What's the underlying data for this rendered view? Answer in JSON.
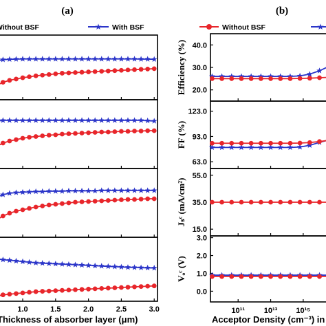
{
  "colors": {
    "without_bsf": "#e8262b",
    "with_bsf": "#2b35c9",
    "axis": "#000000"
  },
  "panel_a": {
    "tag": "(a)",
    "legend": {
      "without": "Without  BSF",
      "with": "With  BSF"
    },
    "xlabel": "Thickness of absorber layer (μm)",
    "xticks": [
      "1.0",
      "1.5",
      "2.0",
      "2.5",
      "3.0"
    ]
  },
  "panel_b": {
    "tag": "(b)",
    "legend": {
      "without": "Without  BSF"
    },
    "xlabel": "Acceptor Density (cm⁻³) in",
    "xticks": [
      "10¹¹",
      "10¹³",
      "10¹⁵"
    ],
    "ylabels": [
      "Efficiency (%)",
      "FF (%)",
      "Jₛᶜ (mA/cm²)",
      "Vₒᶜ (V)"
    ],
    "yticks": [
      [
        "40.0",
        "30.0",
        "20.0"
      ],
      [
        "123.0",
        "93.0",
        "63.0"
      ],
      [
        "55.0",
        "35.0",
        "15.0"
      ],
      [
        "3.0",
        "2.0",
        "1.0",
        "0.0"
      ]
    ]
  },
  "chart_data": [
    {
      "type": "line",
      "panel": "a",
      "x": [
        0.6,
        0.7,
        0.8,
        0.9,
        1.0,
        1.1,
        1.2,
        1.3,
        1.4,
        1.5,
        1.6,
        1.7,
        1.8,
        1.9,
        2.0,
        2.1,
        2.2,
        2.3,
        2.4,
        2.5,
        2.6,
        2.7,
        2.8,
        2.9,
        3.0
      ],
      "xlim": [
        0.55,
        3.05
      ],
      "subplots": [
        {
          "ylim": [
            0,
            1
          ],
          "series": [
            {
              "name": "With  BSF",
              "values": [
                0.6,
                0.62,
                0.625,
                0.628,
                0.63,
                0.63,
                0.63,
                0.63,
                0.63,
                0.63,
                0.63,
                0.63,
                0.63,
                0.63,
                0.63,
                0.63,
                0.63,
                0.63,
                0.63,
                0.63,
                0.63,
                0.63,
                0.628,
                0.628,
                0.625
              ]
            },
            {
              "name": "Without  BSF",
              "values": [
                0.22,
                0.27,
                0.3,
                0.32,
                0.34,
                0.355,
                0.37,
                0.38,
                0.39,
                0.4,
                0.41,
                0.415,
                0.42,
                0.425,
                0.43,
                0.435,
                0.44,
                0.445,
                0.45,
                0.455,
                0.46,
                0.465,
                0.47,
                0.475,
                0.48
              ]
            }
          ]
        },
        {
          "ylim": [
            0,
            1
          ],
          "series": [
            {
              "name": "With  BSF",
              "values": [
                0.69,
                0.7,
                0.7,
                0.7,
                0.7,
                0.7,
                0.7,
                0.7,
                0.7,
                0.7,
                0.7,
                0.7,
                0.7,
                0.7,
                0.7,
                0.7,
                0.7,
                0.7,
                0.7,
                0.7,
                0.7,
                0.7,
                0.7,
                0.695,
                0.69
              ]
            },
            {
              "name": "Without  BSF",
              "values": [
                0.32,
                0.37,
                0.4,
                0.42,
                0.44,
                0.455,
                0.465,
                0.475,
                0.485,
                0.49,
                0.5,
                0.505,
                0.51,
                0.515,
                0.52,
                0.525,
                0.53,
                0.53,
                0.535,
                0.54,
                0.54,
                0.545,
                0.545,
                0.55,
                0.55
              ]
            }
          ]
        },
        {
          "ylim": [
            0,
            1
          ],
          "series": [
            {
              "name": "With  BSF",
              "values": [
                0.58,
                0.62,
                0.64,
                0.65,
                0.655,
                0.66,
                0.665,
                0.665,
                0.67,
                0.67,
                0.67,
                0.675,
                0.675,
                0.675,
                0.675,
                0.675,
                0.68,
                0.68,
                0.68,
                0.68,
                0.68,
                0.68,
                0.68,
                0.68,
                0.68
              ]
            },
            {
              "name": "Without  BSF",
              "values": [
                0.25,
                0.31,
                0.35,
                0.38,
                0.4,
                0.42,
                0.44,
                0.455,
                0.47,
                0.48,
                0.49,
                0.5,
                0.51,
                0.515,
                0.52,
                0.525,
                0.53,
                0.535,
                0.54,
                0.545,
                0.55,
                0.55,
                0.555,
                0.56,
                0.56
              ]
            }
          ]
        },
        {
          "ylim": [
            0,
            1
          ],
          "series": [
            {
              "name": "With  BSF",
              "values": [
                0.66,
                0.65,
                0.64,
                0.63,
                0.62,
                0.61,
                0.6,
                0.595,
                0.59,
                0.585,
                0.58,
                0.575,
                0.57,
                0.565,
                0.56,
                0.555,
                0.55,
                0.545,
                0.54,
                0.535,
                0.53,
                0.528,
                0.525,
                0.522,
                0.52
              ]
            },
            {
              "name": "Without  BSF",
              "values": [
                0.08,
                0.1,
                0.11,
                0.12,
                0.13,
                0.14,
                0.15,
                0.155,
                0.16,
                0.165,
                0.17,
                0.175,
                0.18,
                0.185,
                0.19,
                0.195,
                0.2,
                0.205,
                0.21,
                0.215,
                0.22,
                0.225,
                0.23,
                0.235,
                0.24
              ]
            }
          ]
        }
      ]
    },
    {
      "type": "line",
      "panel": "b",
      "xscale": "log",
      "x_exponent": [
        9.4,
        10.0,
        10.6,
        11.2,
        11.8,
        12.4,
        13.0,
        13.6,
        14.2,
        14.8,
        15.4,
        16.0,
        16.6
      ],
      "xlim_exponent": [
        9.3,
        16.4
      ],
      "subplots": [
        {
          "ylabel": "Efficiency (%)",
          "ylim": [
            15,
            45
          ],
          "series": [
            {
              "name": "Without  BSF",
              "values": [
                25.0,
                25.0,
                25.0,
                25.0,
                25.0,
                25.0,
                25.0,
                25.0,
                25.0,
                25.1,
                25.2,
                25.4,
                25.6
              ]
            },
            {
              "name": "With BSF",
              "values": [
                26.0,
                26.0,
                26.0,
                26.0,
                26.0,
                26.0,
                26.0,
                26.0,
                26.0,
                26.2,
                27.0,
                28.5,
                30.5
              ]
            }
          ]
        },
        {
          "ylabel": "FF (%)",
          "ylim": [
            55,
            135
          ],
          "series": [
            {
              "name": "Without  BSF",
              "values": [
                85.0,
                85.0,
                85.0,
                85.0,
                85.0,
                85.0,
                85.0,
                85.0,
                85.0,
                85.2,
                85.8,
                87.0,
                88.5
              ]
            },
            {
              "name": "With BSF",
              "values": [
                80.0,
                80.0,
                80.0,
                80.0,
                80.0,
                80.0,
                80.0,
                80.0,
                80.0,
                80.5,
                82.5,
                86.0,
                89.0
              ]
            }
          ]
        },
        {
          "ylabel": "Jsc (mA/cm2)",
          "ylim": [
            10,
            60
          ],
          "series": [
            {
              "name": "Without  BSF",
              "values": [
                35.0,
                35.0,
                35.0,
                35.0,
                35.0,
                35.0,
                35.0,
                35.0,
                35.0,
                35.0,
                35.0,
                35.0,
                35.0
              ]
            }
          ]
        },
        {
          "ylabel": "Voc (V)",
          "ylim": [
            -0.6,
            3.1
          ],
          "series": [
            {
              "name": "Without  BSF",
              "values": [
                0.82,
                0.82,
                0.82,
                0.82,
                0.82,
                0.82,
                0.82,
                0.82,
                0.82,
                0.82,
                0.82,
                0.82,
                0.82
              ]
            },
            {
              "name": "With BSF",
              "values": [
                0.9,
                0.9,
                0.9,
                0.9,
                0.9,
                0.9,
                0.9,
                0.9,
                0.9,
                0.9,
                0.9,
                0.9,
                0.9
              ]
            }
          ]
        }
      ]
    }
  ]
}
